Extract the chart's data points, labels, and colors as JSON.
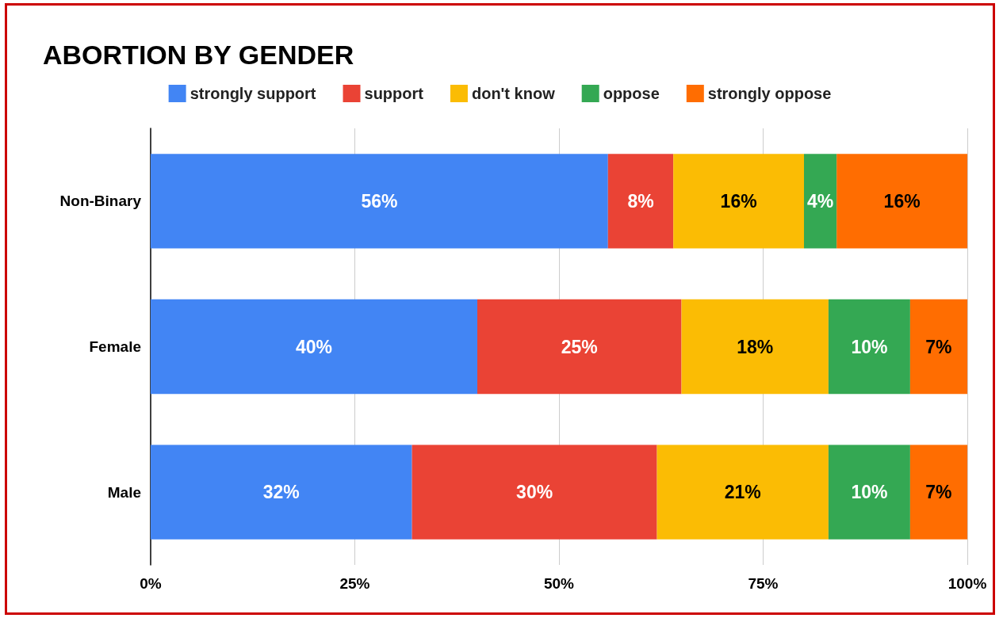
{
  "chart_data": {
    "type": "bar",
    "title": "ABORTION BY GENDER",
    "orientation": "horizontal",
    "stacked": true,
    "categories": [
      "Non-Binary",
      "Female",
      "Male"
    ],
    "series": [
      {
        "name": "strongly support",
        "color": "#4285f4",
        "values": [
          56,
          40,
          32
        ],
        "value_labels": [
          "56%",
          "40%",
          "32%"
        ]
      },
      {
        "name": "support",
        "color": "#ea4335",
        "values": [
          8,
          25,
          30
        ],
        "value_labels": [
          "8%",
          "25%",
          "30%"
        ]
      },
      {
        "name": "don't know",
        "color": "#fbbc04",
        "values": [
          16,
          18,
          21
        ],
        "value_labels": [
          "16%",
          "18%",
          "21%"
        ]
      },
      {
        "name": "oppose",
        "color": "#34a853",
        "values": [
          4,
          10,
          10
        ],
        "value_labels": [
          "4%",
          "10%",
          "10%"
        ]
      },
      {
        "name": "strongly oppose",
        "color": "#ff6d01",
        "values": [
          16,
          7,
          7
        ],
        "value_labels": [
          "16%",
          "7%",
          "7%"
        ]
      }
    ],
    "xlim": [
      0,
      100
    ],
    "xticks": [
      {
        "value": 0,
        "label": "0%"
      },
      {
        "value": 25,
        "label": "25%"
      },
      {
        "value": 50,
        "label": "50%"
      },
      {
        "value": 75,
        "label": "75%"
      },
      {
        "value": 100,
        "label": "100%"
      }
    ],
    "grid": "x",
    "legend": "top"
  }
}
